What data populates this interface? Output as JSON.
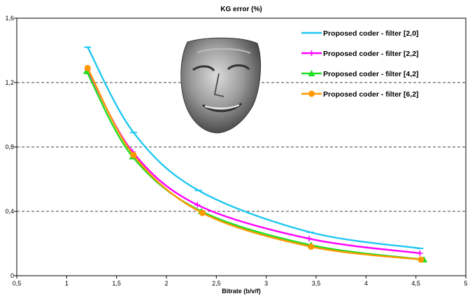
{
  "chart_data": {
    "type": "line",
    "title": "KG error (%)",
    "xlabel": "Bitrate (b/v/f)",
    "ylabel": "",
    "xlim": [
      0.5,
      5
    ],
    "ylim": [
      0,
      1.6
    ],
    "x_ticks": [
      0.5,
      1,
      1.5,
      2,
      2.5,
      3,
      3.5,
      4,
      4.5,
      5
    ],
    "x_tick_labels": [
      "0,5",
      "1",
      "1,5",
      "2",
      "2,5",
      "3",
      "3,5",
      "4",
      "4,5",
      "5"
    ],
    "y_ticks": [
      0,
      0.4,
      0.8,
      1.2,
      1.6
    ],
    "y_tick_labels": [
      "0",
      "0,4",
      "0,8",
      "1,2",
      "1,6"
    ],
    "grid": "horizontal dashed",
    "legend_position": "top-right",
    "series": [
      {
        "name": "Proposed coder - filter [2,0]",
        "color": "#1ec8f0",
        "marker": "dash",
        "x": [
          1.21,
          1.67,
          2.32,
          3.44,
          4.54
        ],
        "y": [
          1.42,
          0.89,
          0.53,
          0.27,
          0.17
        ]
      },
      {
        "name": "Proposed coder - filter [2,2]",
        "color": "#ff00ff",
        "marker": "plus",
        "x": [
          1.21,
          1.66,
          2.31,
          3.43,
          4.54
        ],
        "y": [
          1.28,
          0.77,
          0.44,
          0.23,
          0.14
        ]
      },
      {
        "name": "Proposed coder - filter [4,2]",
        "color": "#22dd22",
        "marker": "triangle",
        "x": [
          1.2,
          1.66,
          2.35,
          3.45,
          4.58
        ],
        "y": [
          1.27,
          0.74,
          0.4,
          0.19,
          0.1
        ]
      },
      {
        "name": "Proposed coder - filter [6,2]",
        "color": "#ff9900",
        "marker": "circle",
        "x": [
          1.21,
          1.67,
          2.36,
          3.45,
          4.55
        ],
        "y": [
          1.29,
          0.75,
          0.39,
          0.18,
          0.1
        ]
      }
    ]
  }
}
